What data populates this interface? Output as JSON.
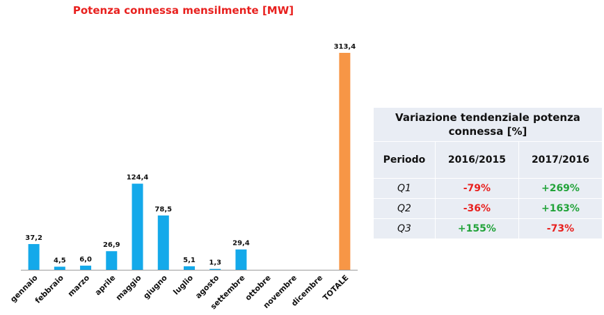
{
  "chart_data": {
    "type": "bar",
    "title": "Potenza connessa mensilmente [MW]",
    "categories": [
      "gennaio",
      "febbraio",
      "marzo",
      "aprile",
      "maggio",
      "giugno",
      "luglio",
      "agosto",
      "settembre",
      "ottobre",
      "novembre",
      "dicembre",
      "TOTALE"
    ],
    "values": [
      37.2,
      4.5,
      6.0,
      26.9,
      124.4,
      78.5,
      5.1,
      1.3,
      29.4,
      null,
      null,
      null,
      313.4
    ],
    "value_labels": [
      "37,2",
      "4,5",
      "6,0",
      "26,9",
      "124,4",
      "78,5",
      "5,1",
      "1,3",
      "29,4",
      "",
      "",
      "",
      "313,4"
    ],
    "colors": {
      "month": "#14a9ea",
      "total": "#f79646"
    },
    "ylim": [
      0,
      320
    ],
    "grid": false,
    "xlabel": "",
    "ylabel": ""
  },
  "table": {
    "title": "Variazione tendenziale potenza connessa [%]",
    "headers": [
      "Periodo",
      "2016/2015",
      "2017/2016"
    ],
    "rows": [
      {
        "period": "Q1",
        "v1": "-79%",
        "v2": "+269%"
      },
      {
        "period": "Q2",
        "v1": "-36%",
        "v2": "+163%"
      },
      {
        "period": "Q3",
        "v1": "+155%",
        "v2": "-73%"
      }
    ],
    "colors": {
      "negative": "#e8201e",
      "positive": "#22a33a",
      "background": "#e9edf4"
    }
  }
}
